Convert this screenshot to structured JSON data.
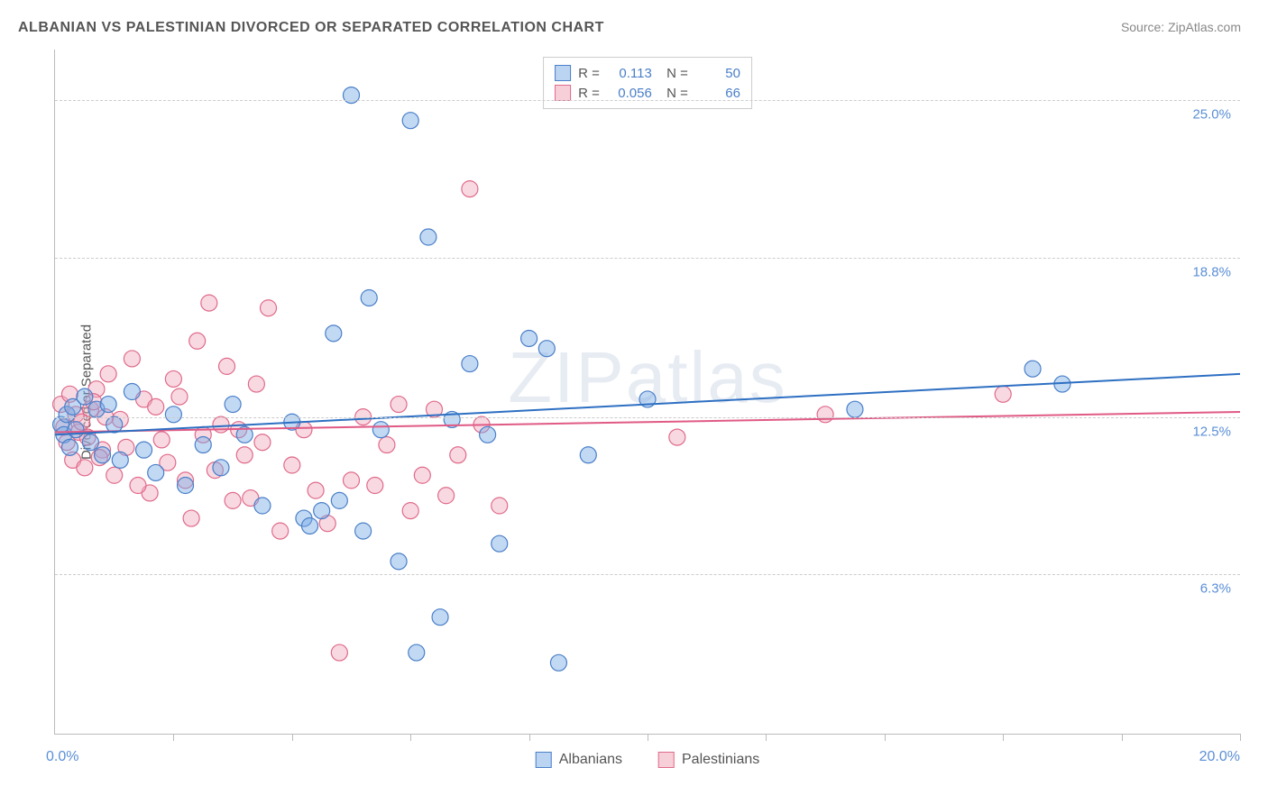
{
  "title": "ALBANIAN VS PALESTINIAN DIVORCED OR SEPARATED CORRELATION CHART",
  "source_label": "Source: ",
  "source_value": "ZipAtlas.com",
  "watermark": "ZIPatlas",
  "chart": {
    "type": "scatter",
    "x_axis": {
      "min": 0.0,
      "max": 20.0,
      "start_label": "0.0%",
      "end_label": "20.0%",
      "tick_positions": [
        0,
        2,
        4,
        6,
        8,
        10,
        12,
        14,
        16,
        18,
        20
      ]
    },
    "y_axis": {
      "min": 0.0,
      "max": 27.0,
      "title": "Divorced or Separated",
      "gridlines": [
        {
          "value": 6.3,
          "label": "6.3%"
        },
        {
          "value": 12.5,
          "label": "12.5%"
        },
        {
          "value": 18.8,
          "label": "18.8%"
        },
        {
          "value": 25.0,
          "label": "25.0%"
        }
      ]
    },
    "colors": {
      "series_a_fill": "rgba(120,170,230,0.45)",
      "series_a_stroke": "#4a7fc8",
      "series_b_fill": "rgba(240,170,190,0.45)",
      "series_b_stroke": "#e06a8a",
      "trend_a": "#2d6fc2",
      "trend_b": "#e05a85",
      "grid": "#cccccc",
      "axis": "#bbbbbb",
      "text": "#555555",
      "tick_label": "#5b8fd6"
    },
    "marker_radius": 9,
    "marker_stroke_width": 1.2,
    "trend_width": 2,
    "series_a": {
      "name": "Albanians",
      "R": "0.113",
      "N": "50",
      "trend": {
        "y_at_xmin": 11.8,
        "y_at_xmax": 14.2
      },
      "points": [
        [
          0.1,
          12.2
        ],
        [
          0.15,
          11.8
        ],
        [
          0.2,
          12.6
        ],
        [
          0.25,
          11.3
        ],
        [
          0.3,
          12.9
        ],
        [
          0.35,
          12.0
        ],
        [
          0.5,
          13.3
        ],
        [
          0.6,
          11.5
        ],
        [
          0.7,
          12.8
        ],
        [
          0.8,
          11.0
        ],
        [
          0.9,
          13.0
        ],
        [
          1.0,
          12.2
        ],
        [
          1.1,
          10.8
        ],
        [
          1.3,
          13.5
        ],
        [
          1.5,
          11.2
        ],
        [
          1.7,
          10.3
        ],
        [
          2.0,
          12.6
        ],
        [
          2.2,
          9.8
        ],
        [
          2.5,
          11.4
        ],
        [
          2.8,
          10.5
        ],
        [
          3.0,
          13.0
        ],
        [
          3.2,
          11.8
        ],
        [
          3.5,
          9.0
        ],
        [
          4.0,
          12.3
        ],
        [
          4.2,
          8.5
        ],
        [
          4.5,
          8.8
        ],
        [
          4.7,
          15.8
        ],
        [
          5.0,
          25.2
        ],
        [
          5.3,
          17.2
        ],
        [
          5.5,
          12.0
        ],
        [
          5.8,
          6.8
        ],
        [
          6.0,
          24.2
        ],
        [
          6.1,
          3.2
        ],
        [
          6.3,
          19.6
        ],
        [
          6.5,
          4.6
        ],
        [
          6.7,
          12.4
        ],
        [
          7.0,
          14.6
        ],
        [
          7.3,
          11.8
        ],
        [
          7.5,
          7.5
        ],
        [
          8.0,
          15.6
        ],
        [
          8.3,
          15.2
        ],
        [
          8.5,
          2.8
        ],
        [
          9.0,
          11.0
        ],
        [
          10.0,
          13.2
        ],
        [
          13.5,
          12.8
        ],
        [
          16.5,
          14.4
        ],
        [
          17.0,
          13.8
        ],
        [
          4.3,
          8.2
        ],
        [
          4.8,
          9.2
        ],
        [
          5.2,
          8.0
        ]
      ]
    },
    "series_b": {
      "name": "Palestinians",
      "R": "0.056",
      "N": "66",
      "trend": {
        "y_at_xmin": 11.9,
        "y_at_xmax": 12.7
      },
      "points": [
        [
          0.1,
          13.0
        ],
        [
          0.15,
          12.1
        ],
        [
          0.2,
          11.5
        ],
        [
          0.25,
          13.4
        ],
        [
          0.3,
          10.8
        ],
        [
          0.35,
          12.6
        ],
        [
          0.4,
          11.9
        ],
        [
          0.5,
          10.5
        ],
        [
          0.6,
          12.8
        ],
        [
          0.7,
          13.6
        ],
        [
          0.8,
          11.2
        ],
        [
          0.9,
          14.2
        ],
        [
          1.0,
          10.2
        ],
        [
          1.1,
          12.4
        ],
        [
          1.3,
          14.8
        ],
        [
          1.5,
          13.2
        ],
        [
          1.6,
          9.5
        ],
        [
          1.8,
          11.6
        ],
        [
          2.0,
          14.0
        ],
        [
          2.2,
          10.0
        ],
        [
          2.4,
          15.5
        ],
        [
          2.6,
          17.0
        ],
        [
          2.8,
          12.2
        ],
        [
          3.0,
          9.2
        ],
        [
          3.2,
          11.0
        ],
        [
          3.4,
          13.8
        ],
        [
          3.6,
          16.8
        ],
        [
          3.8,
          8.0
        ],
        [
          4.0,
          10.6
        ],
        [
          4.2,
          12.0
        ],
        [
          4.4,
          9.6
        ],
        [
          4.6,
          8.3
        ],
        [
          4.8,
          3.2
        ],
        [
          5.0,
          10.0
        ],
        [
          5.2,
          12.5
        ],
        [
          5.4,
          9.8
        ],
        [
          5.6,
          11.4
        ],
        [
          5.8,
          13.0
        ],
        [
          6.0,
          8.8
        ],
        [
          6.2,
          10.2
        ],
        [
          6.4,
          12.8
        ],
        [
          6.6,
          9.4
        ],
        [
          6.8,
          11.0
        ],
        [
          7.0,
          21.5
        ],
        [
          7.2,
          12.2
        ],
        [
          7.5,
          9.0
        ],
        [
          10.5,
          11.7
        ],
        [
          13.0,
          12.6
        ],
        [
          16.0,
          13.4
        ],
        [
          0.45,
          12.3
        ],
        [
          0.55,
          11.7
        ],
        [
          0.65,
          13.1
        ],
        [
          0.75,
          10.9
        ],
        [
          0.85,
          12.5
        ],
        [
          1.2,
          11.3
        ],
        [
          1.4,
          9.8
        ],
        [
          1.7,
          12.9
        ],
        [
          1.9,
          10.7
        ],
        [
          2.1,
          13.3
        ],
        [
          2.3,
          8.5
        ],
        [
          2.5,
          11.8
        ],
        [
          2.7,
          10.4
        ],
        [
          2.9,
          14.5
        ],
        [
          3.1,
          12.0
        ],
        [
          3.3,
          9.3
        ],
        [
          3.5,
          11.5
        ]
      ]
    },
    "legend_bottom": [
      {
        "label": "Albanians",
        "swatch": "blue"
      },
      {
        "label": "Palestinians",
        "swatch": "pink"
      }
    ]
  }
}
